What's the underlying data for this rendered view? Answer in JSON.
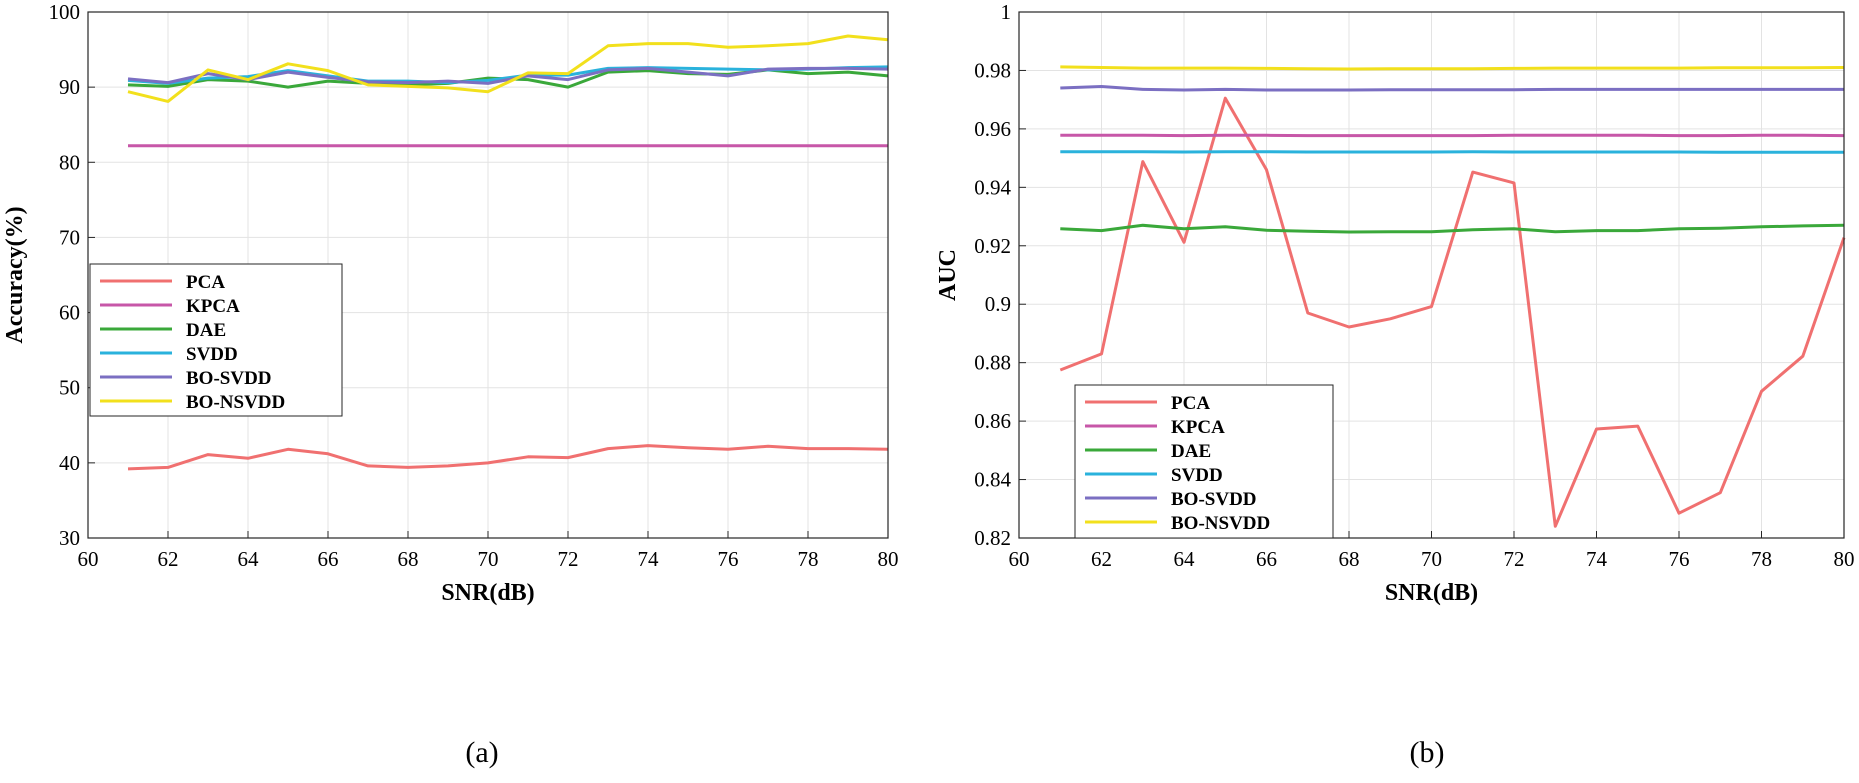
{
  "captions": [
    "(a)",
    "(b)"
  ],
  "chart_data": [
    {
      "type": "line",
      "title": "",
      "xlabel": "SNR(dB)",
      "ylabel": "Accuracy(%)",
      "xlim": [
        60,
        80
      ],
      "ylim": [
        30,
        100
      ],
      "xticks": [
        60,
        62,
        64,
        66,
        68,
        70,
        72,
        74,
        76,
        78,
        80
      ],
      "yticks": [
        30,
        40,
        50,
        60,
        70,
        80,
        90,
        100
      ],
      "grid": true,
      "legend_position": "middle-left",
      "x": [
        61,
        62,
        63,
        64,
        65,
        66,
        67,
        68,
        69,
        70,
        71,
        72,
        73,
        74,
        75,
        76,
        77,
        78,
        79,
        80
      ],
      "series": [
        {
          "name": "PCA",
          "color": "#f07070",
          "values": [
            39.2,
            39.4,
            41.1,
            40.6,
            41.8,
            41.2,
            39.6,
            39.4,
            39.6,
            40.0,
            40.8,
            40.7,
            41.9,
            42.3,
            42.0,
            41.8,
            42.2,
            41.9,
            41.9,
            41.8
          ]
        },
        {
          "name": "KPCA",
          "color": "#c757a8",
          "values": [
            82.2,
            82.2,
            82.2,
            82.2,
            82.2,
            82.2,
            82.2,
            82.2,
            82.2,
            82.2,
            82.2,
            82.2,
            82.2,
            82.2,
            82.2,
            82.2,
            82.2,
            82.2,
            82.2,
            82.2
          ]
        },
        {
          "name": "DAE",
          "color": "#3aa83a",
          "values": [
            90.3,
            90.1,
            91.0,
            90.8,
            90.0,
            90.8,
            90.5,
            90.3,
            90.5,
            91.2,
            91.0,
            90.0,
            92.0,
            92.2,
            91.8,
            91.7,
            92.3,
            91.8,
            92.0,
            91.5
          ]
        },
        {
          "name": "SVDD",
          "color": "#2ab2dc",
          "values": [
            90.9,
            90.5,
            91.2,
            91.4,
            92.2,
            91.5,
            90.8,
            90.8,
            90.6,
            90.9,
            91.6,
            91.6,
            92.5,
            92.6,
            92.5,
            92.4,
            92.3,
            92.4,
            92.6,
            92.7
          ]
        },
        {
          "name": "BO-SVDD",
          "color": "#7b6fc2",
          "values": [
            91.1,
            90.6,
            91.8,
            91.0,
            92.0,
            91.3,
            90.7,
            90.6,
            90.8,
            90.5,
            91.5,
            91.0,
            92.3,
            92.5,
            92.0,
            91.5,
            92.4,
            92.5,
            92.5,
            92.4
          ]
        },
        {
          "name": "BO-NSVDD",
          "color": "#f2e01c",
          "values": [
            89.4,
            88.1,
            92.3,
            91.0,
            93.1,
            92.2,
            90.3,
            90.1,
            89.9,
            89.4,
            91.9,
            91.8,
            95.5,
            95.8,
            95.8,
            95.3,
            95.5,
            95.8,
            96.8,
            96.3
          ]
        }
      ]
    },
    {
      "type": "line",
      "title": "",
      "xlabel": "SNR(dB)",
      "ylabel": "AUC",
      "xlim": [
        60,
        80
      ],
      "ylim": [
        0.82,
        1.0
      ],
      "xticks": [
        60,
        62,
        64,
        66,
        68,
        70,
        72,
        74,
        76,
        78,
        80
      ],
      "yticks": [
        0.82,
        0.84,
        0.86,
        0.88,
        0.9,
        0.92,
        0.94,
        0.96,
        0.98,
        1.0
      ],
      "ytick_labels": [
        "0.82",
        "0.84",
        "0.86",
        "0.88",
        "0.9",
        "0.92",
        "0.94",
        "0.96",
        "0.98",
        "1"
      ],
      "grid": true,
      "legend_position": "bottom-left",
      "x": [
        61,
        62,
        63,
        64,
        65,
        66,
        67,
        68,
        69,
        70,
        71,
        72,
        73,
        74,
        75,
        76,
        77,
        78,
        79,
        80
      ],
      "series": [
        {
          "name": "PCA",
          "color": "#f07070",
          "values": [
            0.8775,
            0.883,
            0.9488,
            0.9212,
            0.9705,
            0.946,
            0.897,
            0.8922,
            0.895,
            0.8992,
            0.9452,
            0.9415,
            0.824,
            0.8573,
            0.8583,
            0.8285,
            0.8355,
            0.8702,
            0.8822,
            0.9228
          ]
        },
        {
          "name": "KPCA",
          "color": "#c757a8",
          "values": [
            0.9578,
            0.9578,
            0.9578,
            0.9577,
            0.9578,
            0.9578,
            0.9577,
            0.9577,
            0.9577,
            0.9577,
            0.9577,
            0.9578,
            0.9578,
            0.9578,
            0.9578,
            0.9577,
            0.9577,
            0.9578,
            0.9578,
            0.9577
          ]
        },
        {
          "name": "DAE",
          "color": "#3aa83a",
          "values": [
            0.9258,
            0.9252,
            0.927,
            0.9258,
            0.9265,
            0.9253,
            0.925,
            0.9247,
            0.9248,
            0.9248,
            0.9255,
            0.9258,
            0.9248,
            0.9252,
            0.9252,
            0.9258,
            0.926,
            0.9265,
            0.9268,
            0.927
          ]
        },
        {
          "name": "SVDD",
          "color": "#2ab2dc",
          "values": [
            0.9522,
            0.9522,
            0.9522,
            0.9521,
            0.9522,
            0.9522,
            0.9521,
            0.9521,
            0.9521,
            0.9521,
            0.9522,
            0.9521,
            0.9521,
            0.9521,
            0.9521,
            0.9521,
            0.952,
            0.952,
            0.952,
            0.952
          ]
        },
        {
          "name": "BO-SVDD",
          "color": "#7b6fc2",
          "values": [
            0.974,
            0.9745,
            0.9735,
            0.9733,
            0.9735,
            0.9733,
            0.9733,
            0.9733,
            0.9734,
            0.9734,
            0.9734,
            0.9734,
            0.9735,
            0.9735,
            0.9735,
            0.9735,
            0.9735,
            0.9735,
            0.9735,
            0.9735
          ]
        },
        {
          "name": "BO-NSVDD",
          "color": "#f2e01c",
          "values": [
            0.9812,
            0.981,
            0.9808,
            0.9808,
            0.9808,
            0.9807,
            0.9806,
            0.9805,
            0.9806,
            0.9806,
            0.9806,
            0.9807,
            0.9808,
            0.9808,
            0.9808,
            0.9808,
            0.9809,
            0.9809,
            0.9809,
            0.981
          ]
        }
      ]
    }
  ]
}
